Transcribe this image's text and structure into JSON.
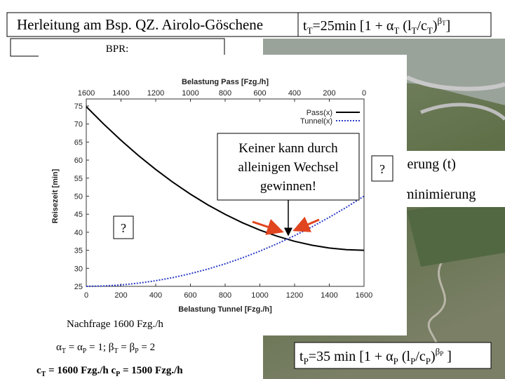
{
  "title": "Herleitung am Bsp. QZ. Airolo-Göschene",
  "formula_tunnel": [
    "t",
    "T",
    "=25min [1 + ",
    "α",
    "T",
    " (l",
    "T",
    "/c",
    "T",
    ")",
    "β",
    "T",
    "]"
  ],
  "bpr_label": "BPR:",
  "annotation": [
    "Keiner kann durch",
    "alleinigen Wechsel",
    "gewinnen!"
  ],
  "question_marks": [
    "?",
    "?"
  ],
  "hidden_texts": [
    "nierung (t)",
    "minimierung"
  ],
  "demand": "Nachfrage 1600 Fzg./h",
  "params_line": [
    "α",
    "T",
    " = ",
    "α",
    "P",
    " = 1;  ",
    "β",
    "T",
    " = ",
    "β",
    "P",
    " = 2"
  ],
  "capacity_line": [
    "c",
    "T",
    " = 1600 Fzg./h c",
    "P",
    " = 1500 Fzg./h"
  ],
  "formula_pass": [
    "t",
    "P",
    "=35 min [1 + ",
    "α",
    "P",
    " (l",
    "P",
    "/c",
    "P",
    ")",
    "β",
    "P",
    " ]"
  ],
  "chart_data": {
    "type": "line",
    "x2_label": "Belastung Pass [Fzg./h]",
    "x_label": "Belastung Tunnel [Fzg./h]",
    "y_label": "Reisezeit [min]",
    "x": [
      0,
      100,
      200,
      300,
      400,
      500,
      600,
      700,
      800,
      900,
      1000,
      1100,
      1200,
      1300,
      1400,
      1500,
      1600
    ],
    "series": [
      {
        "name": "Pass(x)",
        "color": "#000000",
        "dash": false,
        "values": [
          74.82,
          70,
          65.49,
          61.29,
          57.4,
          53.82,
          50.56,
          47.6,
          44.96,
          42.62,
          40.6,
          38.89,
          37.49,
          36.4,
          35.62,
          35.16,
          35
        ]
      },
      {
        "name": "Tunnel(x)",
        "color": "#2a3cc8",
        "dash": true,
        "values": [
          25,
          25.1,
          25.39,
          25.88,
          26.56,
          27.44,
          28.52,
          29.79,
          31.25,
          32.91,
          34.77,
          36.82,
          39.06,
          41.5,
          44.14,
          46.97,
          50
        ]
      }
    ],
    "xlim": [
      0,
      1600
    ],
    "xticks": [
      0,
      200,
      400,
      600,
      800,
      1000,
      1200,
      1400,
      1600
    ],
    "x2lim": [
      1600,
      0
    ],
    "x2ticks": [
      1600,
      1400,
      1200,
      1000,
      800,
      600,
      400,
      200,
      0
    ],
    "ylim": [
      25,
      75
    ],
    "yticks": [
      25,
      30,
      35,
      40,
      45,
      50,
      55,
      60,
      65,
      70,
      75
    ],
    "legend": "upper right"
  }
}
